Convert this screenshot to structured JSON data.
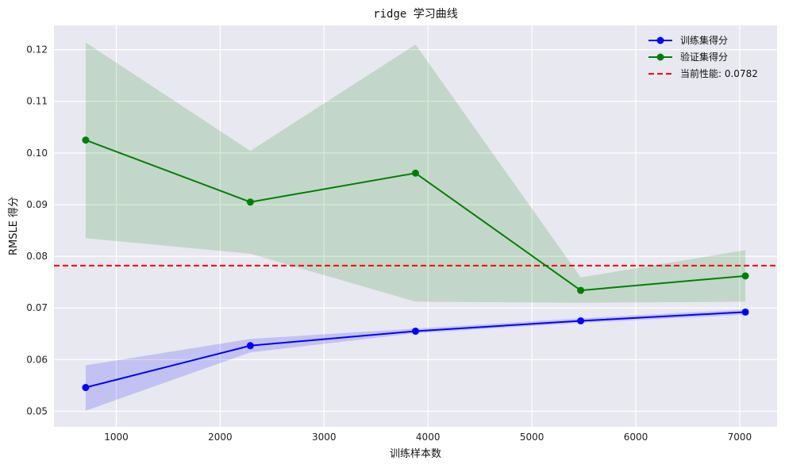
{
  "chart_data": {
    "type": "line",
    "title": "ridge 学习曲线",
    "xlabel": "训练样本数",
    "ylabel": "RMSLE 得分",
    "xlim": [
      400,
      7360
    ],
    "ylim": [
      0.047,
      0.1247
    ],
    "xticks": [
      1000,
      2000,
      3000,
      4000,
      5000,
      6000,
      7000
    ],
    "xtick_labels": [
      "1000",
      "2000",
      "3000",
      "4000",
      "5000",
      "6000",
      "7000"
    ],
    "yticks": [
      0.05,
      0.06,
      0.07,
      0.08,
      0.09,
      0.1,
      0.11,
      0.12
    ],
    "ytick_labels": [
      "0.05",
      "0.06",
      "0.07",
      "0.08",
      "0.09",
      "0.10",
      "0.11",
      "0.12"
    ],
    "grid": true,
    "background": "#e8e8f0",
    "legend_position": "top-right",
    "x": [
      705,
      2290,
      3880,
      5470,
      7055
    ],
    "series": [
      {
        "name": "训练集得分",
        "color": "#0000ff",
        "fill": "#0000ff",
        "values": [
          0.0546,
          0.0627,
          0.0655,
          0.0675,
          0.0692
        ],
        "lower": [
          0.0501,
          0.0614,
          0.0651,
          0.0671,
          0.0687
        ],
        "upper": [
          0.0589,
          0.064,
          0.066,
          0.068,
          0.0697
        ]
      },
      {
        "name": "验证集得分",
        "color": "#008000",
        "fill": "#008000",
        "values": [
          0.1025,
          0.0905,
          0.0961,
          0.0734,
          0.0762
        ],
        "lower": [
          0.0835,
          0.0805,
          0.0712,
          0.071,
          0.0712
        ],
        "upper": [
          0.1214,
          0.1004,
          0.121,
          0.0759,
          0.0812
        ]
      }
    ],
    "reference_line": {
      "label": "当前性能: 0.0782",
      "value": 0.0782,
      "color": "#ff0000",
      "style": "dashed"
    }
  }
}
